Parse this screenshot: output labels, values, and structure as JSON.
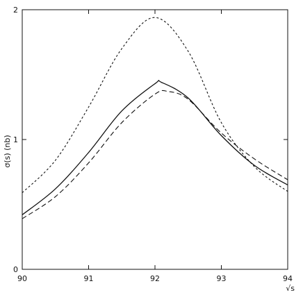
{
  "chart_data": {
    "type": "line",
    "xlabel": "√s",
    "ylabel": "σ(s)   (nb)",
    "xlim": [
      90,
      94
    ],
    "ylim": [
      0,
      2
    ],
    "x_ticks": [
      90,
      91,
      92,
      93,
      94
    ],
    "x_tick_labels": [
      "90",
      "91",
      "92",
      "93",
      "94"
    ],
    "y_ticks": [
      0,
      1,
      2
    ],
    "y_tick_labels": [
      "0",
      "1",
      "2"
    ],
    "grid": false,
    "legend": "none",
    "series": [
      {
        "style": "solid",
        "x": [
          90.0,
          90.5,
          91.0,
          91.5,
          92.0,
          92.1,
          92.5,
          93.0,
          93.5,
          94.0
        ],
        "y": [
          0.42,
          0.62,
          0.9,
          1.22,
          1.43,
          1.44,
          1.32,
          1.03,
          0.8,
          0.65
        ]
      },
      {
        "style": "dashed",
        "x": [
          90.0,
          90.5,
          91.0,
          91.5,
          92.0,
          92.2,
          92.5,
          93.0,
          93.5,
          94.0
        ],
        "y": [
          0.39,
          0.56,
          0.82,
          1.13,
          1.35,
          1.37,
          1.31,
          1.05,
          0.85,
          0.69
        ]
      },
      {
        "style": "dotted",
        "x": [
          90.0,
          90.5,
          91.0,
          91.5,
          92.0,
          92.5,
          93.0,
          93.5,
          94.0
        ],
        "y": [
          0.59,
          0.84,
          1.25,
          1.7,
          1.94,
          1.68,
          1.13,
          0.79,
          0.6
        ]
      }
    ]
  }
}
